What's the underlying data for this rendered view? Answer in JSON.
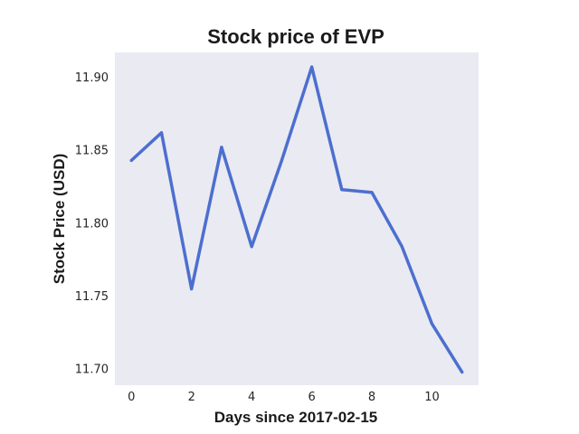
{
  "chart_data": {
    "type": "line",
    "title": "Stock price of EVP",
    "xlabel": "Days since 2017-02-15",
    "ylabel": "Stock Price (USD)",
    "x": [
      0,
      1,
      2,
      3,
      4,
      5,
      6,
      7,
      8,
      9,
      10,
      11
    ],
    "series": [
      {
        "values": [
          11.843,
          11.862,
          11.755,
          11.852,
          11.784,
          11.843,
          11.907,
          11.823,
          11.821,
          11.784,
          11.731,
          11.698
        ]
      }
    ],
    "xlim": [
      -0.55,
      11.55
    ],
    "ylim": [
      11.689,
      11.917
    ],
    "xticks": [
      0,
      2,
      4,
      6,
      8,
      10
    ],
    "yticks": [
      11.7,
      11.75,
      11.8,
      11.85,
      11.9
    ],
    "ytick_labels": [
      "11.70",
      "11.75",
      "11.80",
      "11.85",
      "11.90"
    ],
    "grid": false,
    "style": {
      "background": "#eaeaf2",
      "line_color": "#4c6fcf"
    }
  }
}
